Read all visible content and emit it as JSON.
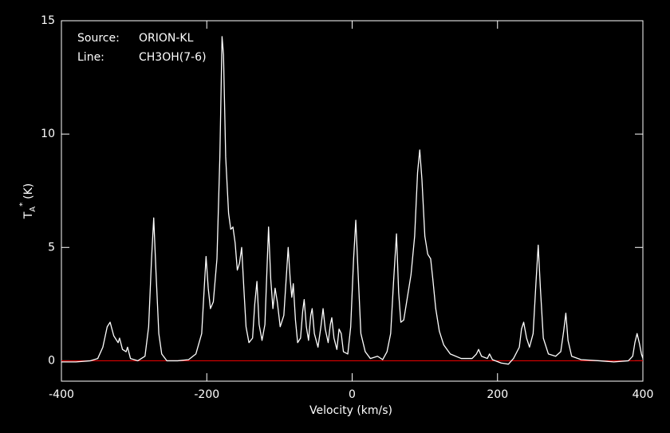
{
  "chart_data": {
    "type": "line",
    "xlabel": "Velocity (km/s)",
    "ylabel": {
      "main": "T",
      "sub": "A",
      "sup": "*",
      "unit": "(K)"
    },
    "annotations": [
      {
        "label": "Source:",
        "value": "ORION-KL"
      },
      {
        "label": "Line:",
        "value": "CH3OH(7-6)"
      }
    ],
    "xlim": [
      -400,
      400
    ],
    "xticks": [
      -400,
      -200,
      0,
      200,
      400
    ],
    "ylim": [
      -0.9,
      15
    ],
    "yticks": [
      0,
      5,
      10,
      15
    ],
    "hline": {
      "value": 0,
      "color": "#e00000"
    },
    "series": [
      {
        "color": "#ffffff",
        "x": [
          -400,
          -380,
          -360,
          -350,
          -343,
          -337,
          -333,
          -328,
          -322,
          -320,
          -316,
          -311,
          -309,
          -305,
          -295,
          -285,
          -280,
          -276,
          -273,
          -270,
          -266,
          -262,
          -255,
          -240,
          -225,
          -215,
          -207,
          -203,
          -201,
          -198,
          -195,
          -191,
          -186,
          -182,
          -179,
          -177,
          -174,
          -170,
          -167,
          -164,
          -161,
          -158,
          -155,
          -152,
          -149,
          -146,
          -142,
          -137,
          -134,
          -131,
          -128,
          -124,
          -120,
          -117,
          -115,
          -112,
          -109,
          -106,
          -103,
          -99,
          -94,
          -91,
          -88,
          -85,
          -83,
          -81,
          -78,
          -75,
          -71,
          -68,
          -66,
          -63,
          -60,
          -57,
          -55,
          -52,
          -47,
          -43,
          -40,
          -37,
          -33,
          -30,
          -28,
          -25,
          -21,
          -18,
          -15,
          -12,
          -6,
          -2,
          2,
          5,
          8,
          12,
          18,
          25,
          35,
          42,
          48,
          53,
          57,
          61,
          64,
          67,
          71,
          76,
          81,
          86,
          90,
          93,
          96,
          100,
          104,
          108,
          111,
          115,
          120,
          126,
          135,
          150,
          165,
          171,
          174,
          178,
          186,
          189,
          193,
          205,
          215,
          222,
          230,
          233,
          236,
          240,
          244,
          249,
          253,
          256,
          259,
          263,
          270,
          280,
          287,
          291,
          294,
          297,
          302,
          315,
          340,
          360,
          380,
          386,
          389,
          392,
          395,
          398,
          400
        ],
        "values": [
          -0.05,
          -0.05,
          0,
          0.1,
          0.6,
          1.5,
          1.7,
          1.1,
          0.8,
          1.0,
          0.5,
          0.4,
          0.6,
          0.1,
          0.0,
          0.2,
          1.5,
          4.5,
          6.3,
          4.0,
          1.2,
          0.3,
          0.0,
          0.0,
          0.05,
          0.3,
          1.2,
          3.5,
          4.6,
          3.2,
          2.3,
          2.6,
          4.5,
          9.0,
          14.3,
          13.5,
          9.0,
          6.5,
          5.8,
          5.9,
          5.2,
          4.0,
          4.3,
          5.0,
          3.2,
          1.5,
          0.8,
          1.0,
          2.5,
          3.5,
          1.6,
          0.9,
          1.6,
          4.2,
          5.9,
          3.6,
          2.3,
          3.2,
          2.6,
          1.5,
          2.0,
          3.5,
          5.0,
          3.5,
          2.8,
          3.4,
          1.8,
          0.8,
          1.0,
          2.2,
          2.7,
          1.5,
          0.9,
          2.0,
          2.3,
          1.2,
          0.6,
          1.5,
          2.3,
          1.4,
          0.8,
          1.6,
          1.9,
          1.0,
          0.5,
          1.4,
          1.2,
          0.4,
          0.3,
          1.5,
          4.5,
          6.2,
          4.0,
          1.2,
          0.4,
          0.1,
          0.2,
          0.05,
          0.4,
          1.2,
          3.5,
          5.6,
          3.0,
          1.7,
          1.8,
          2.8,
          3.8,
          5.5,
          8.3,
          9.3,
          8.0,
          5.5,
          4.7,
          4.5,
          3.6,
          2.3,
          1.3,
          0.7,
          0.3,
          0.1,
          0.1,
          0.3,
          0.5,
          0.2,
          0.1,
          0.3,
          0.05,
          -0.1,
          -0.15,
          0.1,
          0.6,
          1.4,
          1.7,
          1.0,
          0.6,
          1.2,
          3.5,
          5.1,
          3.2,
          1.0,
          0.3,
          0.2,
          0.4,
          1.3,
          2.1,
          0.9,
          0.2,
          0.05,
          0.0,
          -0.05,
          0.0,
          0.2,
          0.8,
          1.2,
          0.8,
          0.3,
          0.1
        ]
      }
    ]
  }
}
